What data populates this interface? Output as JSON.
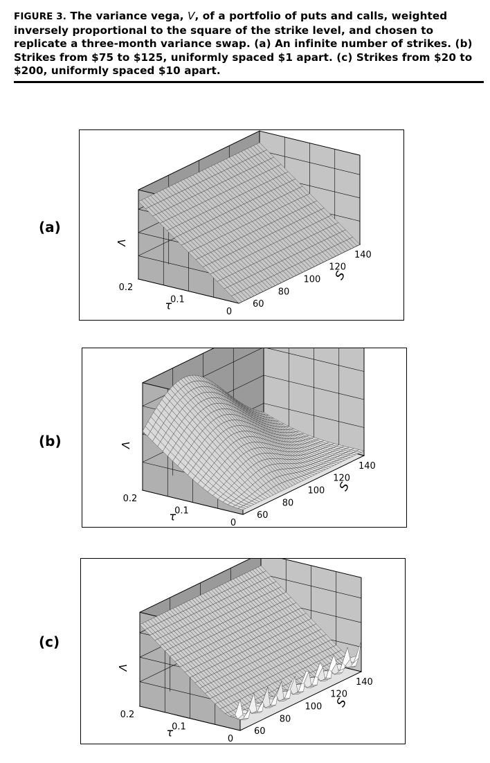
{
  "caption": {
    "figure_label": "FIGURE 3.",
    "part1": "The variance vega, ",
    "symbol_v": "V",
    "part2": ", of a portfolio of puts and calls, weighted inversely proportional to the square of the strike level, and chosen to replicate a three-month variance swap. (a) An infinite number of strikes. (b) Strikes from $75 to $125, uniformly spaced $1 apart. (c) Strikes from $20 to $200, uniformly spaced $10 apart."
  },
  "panels": [
    {
      "label": "(a)",
      "z_axis_label": "V",
      "s_axis_label": "S",
      "tau_axis_label": "τ",
      "s_ticks": [
        "60",
        "80",
        "100",
        "120",
        "140"
      ],
      "tau_ticks": [
        "0",
        "0.1",
        "0.2"
      ]
    },
    {
      "label": "(b)",
      "z_axis_label": "V",
      "s_axis_label": "S",
      "tau_axis_label": "τ",
      "s_ticks": [
        "60",
        "80",
        "100",
        "120",
        "140"
      ],
      "tau_ticks": [
        "0",
        "0.1",
        "0.2"
      ]
    },
    {
      "label": "(c)",
      "z_axis_label": "V",
      "s_axis_label": "S",
      "tau_axis_label": "τ",
      "s_ticks": [
        "60",
        "80",
        "100",
        "120",
        "140"
      ],
      "tau_ticks": [
        "0",
        "0.1",
        "0.2"
      ]
    }
  ],
  "colors": {
    "back_wall": "#9a9a9a",
    "side_wall": "#c4c4c4",
    "floor": "#e2e2e2",
    "surface_light": "#ffffff",
    "surface_dark": "#7a7a7a",
    "ink": "#000000"
  }
}
